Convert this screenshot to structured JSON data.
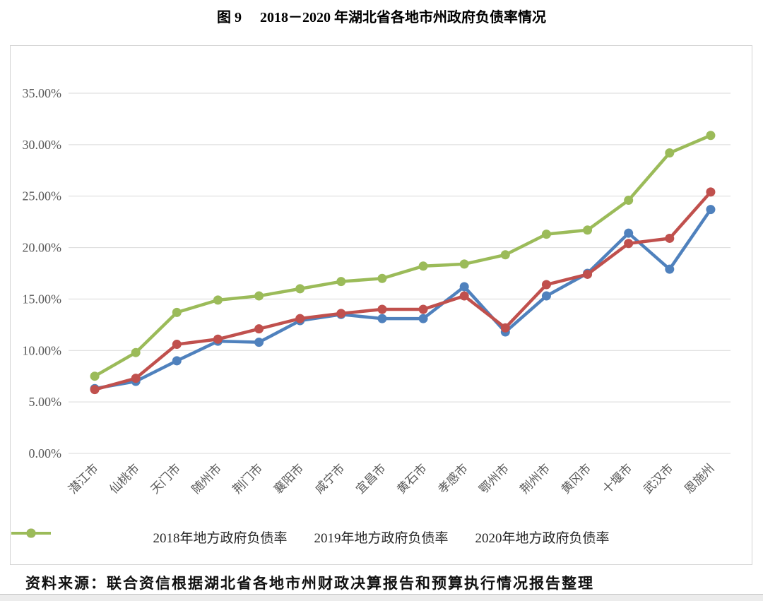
{
  "page": {
    "title_prefix": "图 9",
    "title_text": "2018－2020 年湖北省各地市州政府负债率情况",
    "source_note": "资料来源：联合资信根据湖北省各地市州财政决算报告和预算执行情况报告整理"
  },
  "colors": {
    "grid": "#d9d9d9",
    "axis_text": "#595959",
    "frame_border": "#d4d4d4",
    "series_2018": "#4F81BD",
    "series_2019": "#C0504D",
    "series_2020": "#9BBB59"
  },
  "chart_data": {
    "type": "line",
    "title": "图 9 2018－2020 年湖北省各地市州政府负债率情况",
    "categories": [
      "潜江市",
      "仙桃市",
      "天门市",
      "随州市",
      "荆门市",
      "襄阳市",
      "咸宁市",
      "宜昌市",
      "黄石市",
      "孝感市",
      "鄂州市",
      "荆州市",
      "黄冈市",
      "十堰市",
      "武汉市",
      "恩施州"
    ],
    "series": [
      {
        "name": "2018年地方政府负债率",
        "color": "#4F81BD",
        "values": [
          6.3,
          7.0,
          9.0,
          10.9,
          10.8,
          12.9,
          13.5,
          13.1,
          13.1,
          16.2,
          11.8,
          15.3,
          17.5,
          21.4,
          17.9,
          23.7
        ]
      },
      {
        "name": "2019年地方政府负债率",
        "color": "#C0504D",
        "values": [
          6.2,
          7.3,
          10.6,
          11.1,
          12.1,
          13.1,
          13.6,
          14.0,
          14.0,
          15.3,
          12.2,
          16.4,
          17.4,
          20.4,
          20.9,
          25.4
        ]
      },
      {
        "name": "2020年地方政府负债率",
        "color": "#9BBB59",
        "values": [
          7.5,
          9.8,
          13.7,
          14.9,
          15.3,
          16.0,
          16.7,
          17.0,
          18.2,
          18.4,
          19.3,
          21.3,
          21.7,
          24.6,
          29.2,
          30.9
        ]
      }
    ],
    "y_axis": {
      "min": 0,
      "max": 35,
      "step": 5,
      "tick_labels": [
        "0.00%",
        "5.00%",
        "10.00%",
        "15.00%",
        "20.00%",
        "25.00%",
        "30.00%",
        "35.00%"
      ]
    },
    "grid": true,
    "legend_position": "bottom"
  }
}
